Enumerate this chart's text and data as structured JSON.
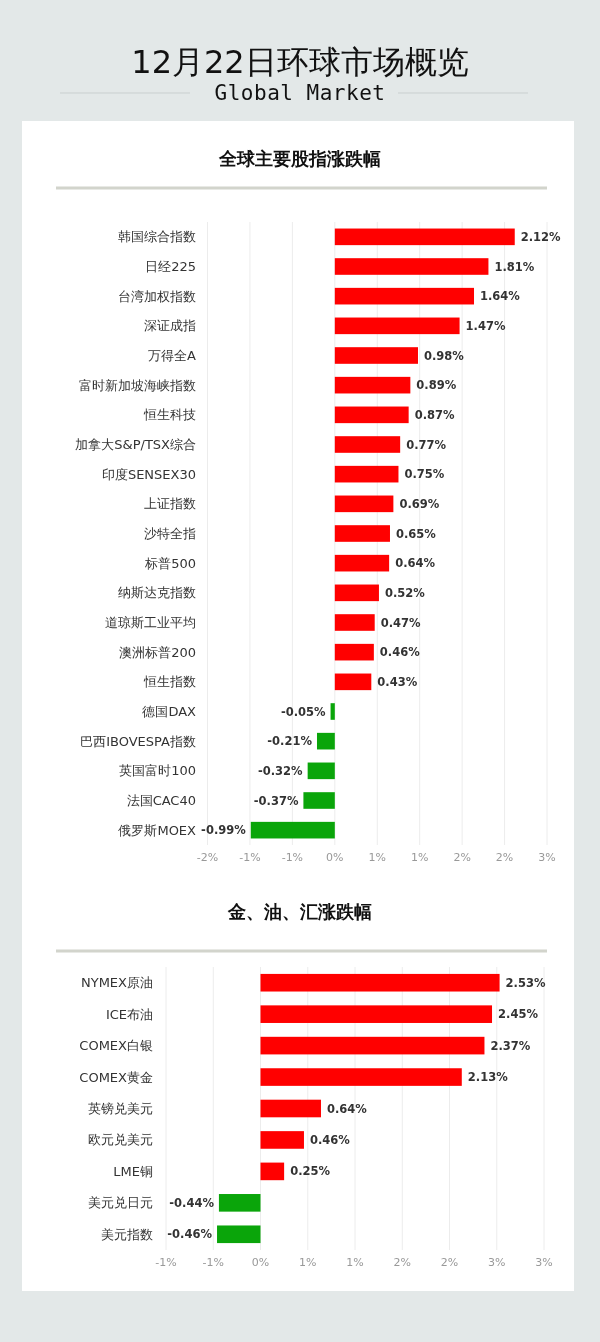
{
  "chart_data": [
    {
      "type": "other",
      "title": "12月22日环球市场概览",
      "subtitle": "Global Market"
    },
    {
      "type": "bar",
      "orientation": "horizontal",
      "title": "全球主要股指涨跌幅",
      "categories": [
        "韩国综合指数",
        "日经225",
        "台湾加权指数",
        "深证成指",
        "万得全A",
        "富时新加坡海峡指数",
        "恒生科技",
        "加拿大S&P/TSX综合",
        "印度SENSEX30",
        "上证指数",
        "沙特全指",
        "标普500",
        "纳斯达克指数",
        "道琼斯工业平均",
        "澳洲标普200",
        "恒生指数",
        "德国DAX",
        "巴西IBOVESPA指数",
        "英国富时100",
        "法国CAC40",
        "俄罗斯MOEX"
      ],
      "values": [
        2.12,
        1.81,
        1.64,
        1.47,
        0.98,
        0.89,
        0.87,
        0.77,
        0.75,
        0.69,
        0.65,
        0.64,
        0.52,
        0.47,
        0.46,
        0.43,
        -0.05,
        -0.21,
        -0.32,
        -0.37,
        -0.99
      ],
      "colors": [
        "#ff0000",
        "#ff0000",
        "#ff0000",
        "#ff0000",
        "#ff0000",
        "#ff0000",
        "#ff0000",
        "#ff0000",
        "#ff0000",
        "#ff0000",
        "#ff0000",
        "#ff0000",
        "#ff0000",
        "#ff0000",
        "#ff0000",
        "#ff0000",
        "#0aa50a",
        "#0aa50a",
        "#0aa50a",
        "#0aa50a",
        "#0aa50a"
      ],
      "value_labels": [
        "2.12%",
        "1.81%",
        "1.64%",
        "1.47%",
        "0.98%",
        "0.89%",
        "0.87%",
        "0.77%",
        "0.75%",
        "0.69%",
        "0.65%",
        "0.64%",
        "0.52%",
        "0.47%",
        "0.46%",
        "0.43%",
        "-0.05%",
        "-0.21%",
        "-0.32%",
        "-0.37%",
        "-0.99%"
      ],
      "xlim": [
        -1.5,
        2.5
      ],
      "xticks": [
        {
          "value": -1.5,
          "label": "-2%"
        },
        {
          "value": -1,
          "label": "-1%"
        },
        {
          "value": -0.5,
          "label": "-1%"
        },
        {
          "value": 0,
          "label": "0%"
        },
        {
          "value": 0.5,
          "label": "1%"
        },
        {
          "value": 1,
          "label": "1%"
        },
        {
          "value": 1.5,
          "label": "2%"
        },
        {
          "value": 2,
          "label": "2%"
        },
        {
          "value": 2.5,
          "label": "3%"
        }
      ],
      "grid": "x"
    },
    {
      "type": "bar",
      "orientation": "horizontal",
      "title": "金、油、汇涨跌幅",
      "categories": [
        "NYMEX原油",
        "ICE布油",
        "COMEX白银",
        "COMEX黄金",
        "英镑兑美元",
        "欧元兑美元",
        "LME铜",
        "美元兑日元",
        "美元指数"
      ],
      "values": [
        2.53,
        2.45,
        2.37,
        2.13,
        0.64,
        0.46,
        0.25,
        -0.44,
        -0.46
      ],
      "colors": [
        "#ff0000",
        "#ff0000",
        "#ff0000",
        "#ff0000",
        "#ff0000",
        "#ff0000",
        "#ff0000",
        "#0aa50a",
        "#0aa50a"
      ],
      "value_labels": [
        "2.53%",
        "2.45%",
        "2.37%",
        "2.13%",
        "0.64%",
        "0.46%",
        "0.25%",
        "-0.44%",
        "-0.46%"
      ],
      "xlim": [
        -1,
        3
      ],
      "xticks": [
        {
          "value": -1,
          "label": "-1%"
        },
        {
          "value": -0.5,
          "label": "-1%"
        },
        {
          "value": 0,
          "label": "0%"
        },
        {
          "value": 0.5,
          "label": "1%"
        },
        {
          "value": 1,
          "label": "1%"
        },
        {
          "value": 1.5,
          "label": "2%"
        },
        {
          "value": 2,
          "label": "2%"
        },
        {
          "value": 2.5,
          "label": "3%"
        },
        {
          "value": 3,
          "label": "3%"
        }
      ],
      "grid": "x"
    }
  ]
}
